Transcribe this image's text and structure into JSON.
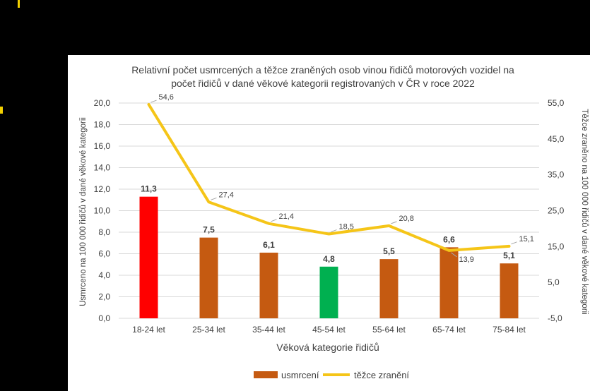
{
  "chart_data": {
    "type": "bar+line",
    "title": "Relativní počet usmrcených a těžce zraněných osob vinou řidičů motorových vozidel na počet řidičů v dané věkové kategorii registrovaných v ČR v roce 2022",
    "title_lines": [
      "Relativní počet usmrcených a těžce zraněných osob vinou řidičů motorových vozidel na",
      "počet řidičů v dané věkové kategorii registrovaných v ČR v roce 2022"
    ],
    "xlabel": "Věková kategorie řidičů",
    "ylabel_left": "Usmrceno na 100 000 řidičů v dané věkové kategorii",
    "ylabel_right": "Těžce zraněno na 100 000 řidičů v dané věkové kategorii",
    "categories": [
      "18-24 let",
      "25-34 let",
      "35-44 let",
      "45-54 let",
      "55-64 let",
      "65-74 let",
      "75-84 let"
    ],
    "ylim_left": [
      0,
      20
    ],
    "yticks_left": [
      "0,0",
      "2,0",
      "4,0",
      "6,0",
      "8,0",
      "10,0",
      "12,0",
      "14,0",
      "16,0",
      "18,0",
      "20,0"
    ],
    "ylim_right": [
      -5,
      55
    ],
    "yticks_right": [
      "-5,0",
      "5,0",
      "15,0",
      "25,0",
      "35,0",
      "45,0",
      "55,0"
    ],
    "grid": true,
    "legend_position": "bottom",
    "series": [
      {
        "name": "usmrcení",
        "kind": "bar",
        "axis": "left",
        "values": [
          11.3,
          7.5,
          6.1,
          4.8,
          5.5,
          6.6,
          5.1
        ],
        "labels": [
          "11,3",
          "7,5",
          "6,1",
          "4,8",
          "5,5",
          "6,6",
          "5,1"
        ],
        "color": "#c55a11",
        "highlight_colors": [
          "#ff0000",
          "#c55a11",
          "#c55a11",
          "#00b050",
          "#c55a11",
          "#c55a11",
          "#c55a11"
        ]
      },
      {
        "name": "těžce zranění",
        "kind": "line",
        "axis": "right",
        "values": [
          54.6,
          27.4,
          21.4,
          18.5,
          20.8,
          13.9,
          15.1
        ],
        "labels": [
          "54,6",
          "27,4",
          "21,4",
          "18,5",
          "20,8",
          "13,9",
          "15,1"
        ],
        "color": "#f5c518"
      }
    ]
  }
}
